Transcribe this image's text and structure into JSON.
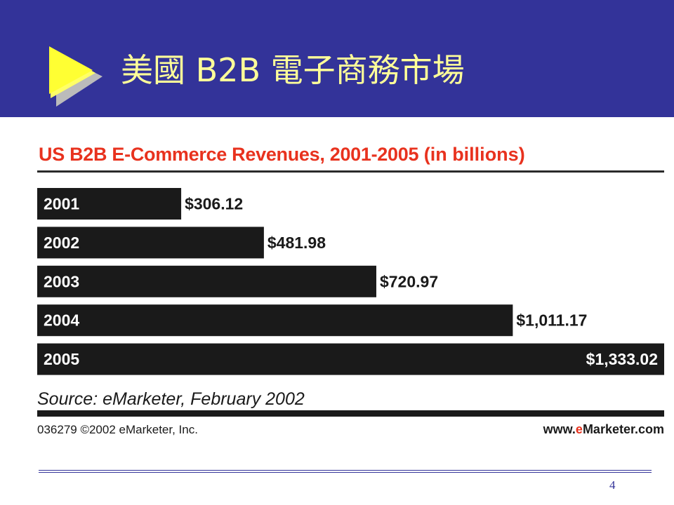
{
  "slide": {
    "title": "美國 B2B 電子商務市場",
    "page_number": "4",
    "colors": {
      "header_band": "#333399",
      "title_text": "#ffff99",
      "arrow": "#ffffff",
      "chart_title": "#e8321e",
      "bars": "#1a1a1a"
    }
  },
  "chart_data": {
    "type": "bar",
    "orientation": "horizontal",
    "title": "US B2B E-Commerce Revenues, 2001-2005",
    "title_unit": "(in billions)",
    "categories": [
      "2001",
      "2002",
      "2003",
      "2004",
      "2005"
    ],
    "values": [
      306.12,
      481.98,
      720.97,
      1011.17,
      1333.02
    ],
    "value_labels": [
      "$306.12",
      "$481.98",
      "$720.97",
      "$1,011.17",
      "$1,333.02"
    ],
    "xlim": [
      0,
      1333.02
    ],
    "grid": false,
    "legend": "none",
    "source": "Source: eMarketer, February 2002",
    "copyright": "036279 ©2002 eMarketer, Inc.",
    "website": {
      "prefix": "www.",
      "accent": "e",
      "suffix": "Marketer.com"
    }
  }
}
